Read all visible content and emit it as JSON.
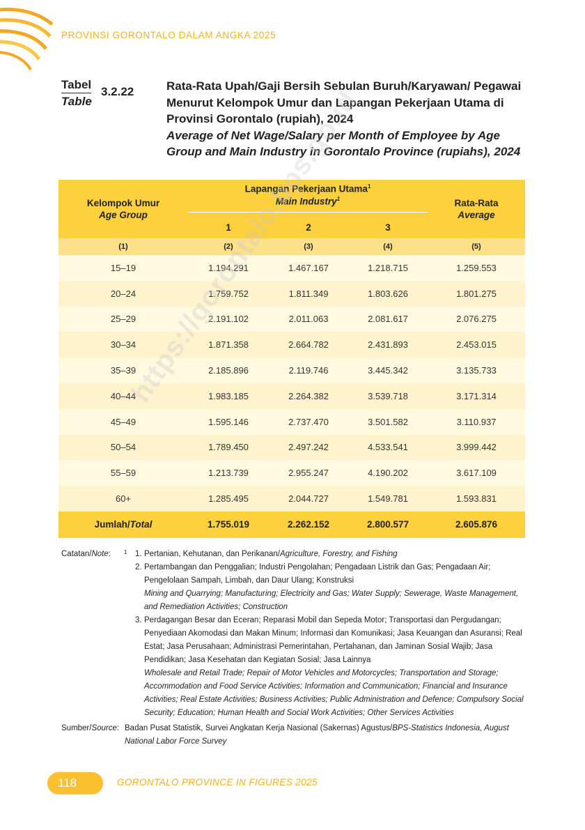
{
  "header": {
    "publication_title": "PROVINSI GORONTALO DALAM ANGKA 2025"
  },
  "table_label": {
    "word_id": "Tabel",
    "word_en": "Table",
    "number": "3.2.22"
  },
  "table_title": {
    "id": "Rata-Rata Upah/Gaji Bersih Sebulan Buruh/Karyawan/ Pegawai Menurut Kelompok Umur dan Lapangan Pekerjaan Utama di Provinsi Gorontalo (rupiah), 2024",
    "en": "Average of Net Wage/Salary per Month of Employee by Age Group and Main Industry in Gorontalo Province (rupiahs), 2024"
  },
  "columns": {
    "age_group_id": "Kelompok Umur",
    "age_group_en": "Age Group",
    "industry_id": "Lapangan Pekerjaan Utama",
    "industry_en": "Main Industry",
    "industry_sup": "1",
    "ind1": "1",
    "ind2": "2",
    "ind3": "3",
    "average_id": "Rata-Rata",
    "average_en": "Average",
    "colnums": [
      "(1)",
      "(2)",
      "(3)",
      "(4)",
      "(5)"
    ]
  },
  "rows": [
    [
      "15–19",
      "1.194.291",
      "1.467.167",
      "1.218.715",
      "1.259.553"
    ],
    [
      "20–24",
      "1.759.752",
      "1.811.349",
      "1.803.626",
      "1.801.275"
    ],
    [
      "25–29",
      "2.191.102",
      "2.011.063",
      "2.081.617",
      "2.076.275"
    ],
    [
      "30–34",
      "1.871.358",
      "2.664.782",
      "2.431.893",
      "2.453.015"
    ],
    [
      "35–39",
      "2.185.896",
      "2.119.746",
      "3.445.342",
      "3.135.733"
    ],
    [
      "40–44",
      "1.983.185",
      "2.264.382",
      "3.539.718",
      "3.171.314"
    ],
    [
      "45–49",
      "1.595.146",
      "2.737.470",
      "3.501.582",
      "3.110.937"
    ],
    [
      "50–54",
      "1.789.450",
      "2.497.242",
      "4.533.541",
      "3.999.442"
    ],
    [
      "55–59",
      "1.213.739",
      "2.955.247",
      "4.190.202",
      "3.617.109"
    ],
    [
      "60+",
      "1.285.495",
      "2.044.727",
      "1.549.781",
      "1.593.831"
    ]
  ],
  "total": {
    "label_id": "Jumlah/",
    "label_en": "Total",
    "values": [
      "1.755.019",
      "2.262.152",
      "2.800.577",
      "2.605.876"
    ]
  },
  "watermark": "https://gorontalo.bps.go.id",
  "notes": {
    "label_id": "Catatan/",
    "label_en": "Note",
    "label_colon": ":",
    "sup": "1",
    "items": [
      {
        "n": "1.",
        "id": "Pertanian, Kehutanan, dan Perikanan/",
        "en": "Agriculture, Forestry, and Fishing"
      },
      {
        "n": "2.",
        "id": "Pertambangan dan Penggalian; Industri Pengolahan; Pengadaan Listrik dan Gas; Pengadaan Air; Pengelolaan Sampah, Limbah, dan Daur Ulang; Konstruksi",
        "en": "Mining and Quarrying; Manufacturing; Electricity and Gas; Water Supply; Sewerage, Waste Management, and Remediation Activities; Construction"
      },
      {
        "n": "3.",
        "id": "Perdagangan Besar dan Eceran; Reparasi Mobil dan Sepeda Motor; Transportasi dan Pergudangan; Penyediaan Akomodasi dan Makan Minum; Informasi dan Komunikasi; Jasa Keuangan dan Asuransi; Real Estat; Jasa Perusahaan; Administrasi Pemerintahan, Pertahanan, dan Jaminan Sosial Wajib; Jasa Pendidikan; Jasa Kesehatan dan Kegiatan Sosial; Jasa Lainnya",
        "en": "Wholesale and Retail Trade; Repair of Motor Vehicles and Motorcycles; Transportation and Storage; Accommodation and Food Service Activities; Information and Communication; Financial and Insurance Activities; Real Estate Activities; Business Activities; Public Administration and Defence; Compulsory Social Security; Education; Human Health and Social Work Activities; Other Services Activities"
      }
    ]
  },
  "source": {
    "label_id": "Sumber/",
    "label_en": "Source",
    "label_colon": ":",
    "id": "Badan Pusat Statistik, Survei Angkatan Kerja Nasional (Sakernas) Agustus/",
    "en": "BPS-Statistics Indonesia, August National Labor Force Survey"
  },
  "footer": {
    "page_number": "118",
    "title": "GORONTALO PROVINCE IN FIGURES 2025"
  },
  "colors": {
    "accent": "#fcd13d",
    "accent_text": "#f0b21a",
    "row_light": "#fff9e0",
    "row_dark": "#fef3cc"
  }
}
